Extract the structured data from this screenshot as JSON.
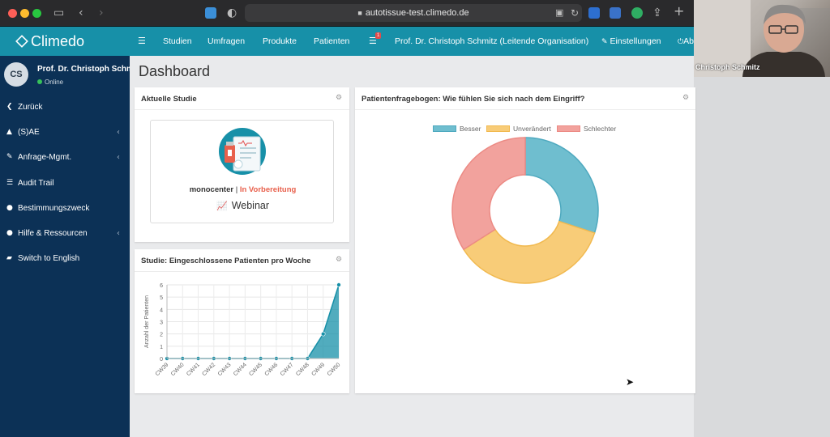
{
  "browser": {
    "url": "autotissue-test.climedo.de"
  },
  "video": {
    "name_label": "Christoph Schmitz"
  },
  "app": {
    "logo": "Climedo"
  },
  "user": {
    "initials": "CS",
    "name": "Prof. Dr. Christoph Schmitz",
    "status": "Online"
  },
  "sidebar": {
    "items": [
      {
        "icon": "chevron-left-icon",
        "glyph": "❮",
        "label": "Zurück",
        "has_submenu": false
      },
      {
        "icon": "warning-icon",
        "glyph": "▲",
        "label": "(S)AE",
        "has_submenu": true
      },
      {
        "icon": "edit-icon",
        "glyph": "✎",
        "label": "Anfrage-Mgmt.",
        "has_submenu": true
      },
      {
        "icon": "list-icon",
        "glyph": "☰",
        "label": "Audit Trail",
        "has_submenu": false
      },
      {
        "icon": "info-icon",
        "glyph": "●",
        "label": "Bestimmungszweck",
        "has_submenu": false
      },
      {
        "icon": "help-icon",
        "glyph": "●",
        "label": "Hilfe & Ressourcen",
        "has_submenu": true
      },
      {
        "icon": "uk-flag-icon",
        "glyph": "▰",
        "label": "Switch to English",
        "has_submenu": false
      }
    ]
  },
  "topnav": {
    "menu_icon": "☰",
    "items": [
      "Studien",
      "Umfragen",
      "Produkte",
      "Patienten"
    ],
    "notification_count": "1",
    "org_label": "Prof. Dr. Christoph Schmitz (Leitende Organisation)",
    "settings_label": "Einstellungen",
    "logout_label": "Ab"
  },
  "page": {
    "title": "Dashboard"
  },
  "current_study": {
    "title": "Aktuelle Studie",
    "name": "monocenter",
    "separator": " | ",
    "status": "In Vorbereitung",
    "tag": "Webinar"
  },
  "patients_chart": {
    "title": "Studie: Eingeschlossene Patienten pro Woche"
  },
  "questionnaire": {
    "title": "Patientenfragebogen: Wie fühlen Sie sich nach dem Eingriff?"
  },
  "colors": {
    "brand": "#1790a8",
    "sidebar": "#0c3156",
    "status_warning": "#e8604c"
  },
  "chart_data": [
    {
      "type": "area",
      "title": "",
      "xlabel": "",
      "ylabel": "Anzahl der Patienten",
      "categories": [
        "CW39",
        "CW40",
        "CW41",
        "CW42",
        "CW43",
        "CW44",
        "CW45",
        "CW46",
        "CW47",
        "CW48",
        "CW49",
        "CW50"
      ],
      "values": [
        0,
        0,
        0,
        0,
        0,
        0,
        0,
        0,
        0,
        0,
        2,
        6
      ],
      "ylim": [
        0,
        6
      ],
      "yticks": [
        0,
        1,
        2,
        3,
        4,
        5,
        6
      ],
      "grid": true,
      "color": "#1790a8"
    },
    {
      "type": "pie",
      "variant": "doughnut",
      "labels": [
        "Besser",
        "Unverändert",
        "Schlechter"
      ],
      "values": [
        30,
        36,
        34
      ],
      "colors": [
        "#6fbecf",
        "#f8cc78",
        "#f2a29d"
      ],
      "border_colors": [
        "#4ea9bf",
        "#f1b94f",
        "#ec8a84"
      ],
      "legend": "top"
    }
  ]
}
